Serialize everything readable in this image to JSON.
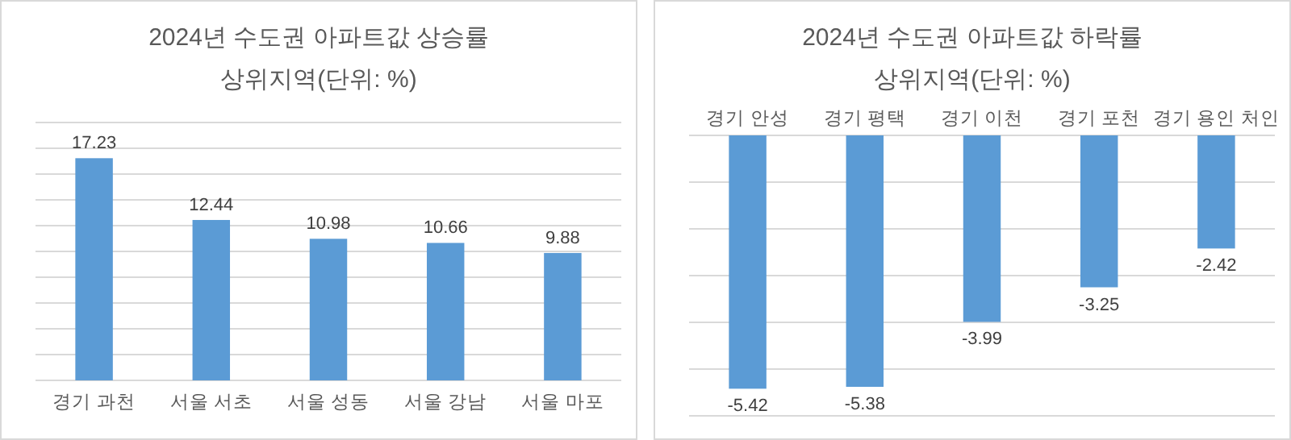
{
  "chart_data": [
    {
      "type": "bar",
      "title": "2024년 수도권 아파트값 상승률",
      "subtitle": "상위지역(단위: %)",
      "categories": [
        "경기 과천",
        "서울 서초",
        "서울 성동",
        "서울 강남",
        "서울 마포"
      ],
      "values": [
        17.23,
        12.44,
        10.98,
        10.66,
        9.88
      ],
      "color": "#5b9bd5",
      "ylim": [
        0,
        20
      ],
      "yticks": [
        {
          "value": 0,
          "label": null
        },
        {
          "value": 2,
          "label": null
        },
        {
          "value": 4,
          "label": null
        },
        {
          "value": 6,
          "label": null
        },
        {
          "value": 8,
          "label": null
        },
        {
          "value": 10,
          "label": null
        },
        {
          "value": 12,
          "label": null
        },
        {
          "value": 14,
          "label": null
        },
        {
          "value": 16,
          "label": null
        },
        {
          "value": 18,
          "label": null
        },
        {
          "value": 20,
          "label": null
        }
      ],
      "tick_labels": "x",
      "grid": "y",
      "data_labels": true
    },
    {
      "type": "bar",
      "title": "2024년 수도권 아파트값 하락률",
      "subtitle": "상위지역(단위: %)",
      "categories": [
        "경기 안성",
        "경기 평택",
        "경기 이천",
        "경기 포천",
        "경기 용인 처인"
      ],
      "values": [
        -5.42,
        -5.38,
        -3.99,
        -3.25,
        -2.42
      ],
      "color": "#5b9bd5",
      "ylim": [
        -6,
        0
      ],
      "yticks": [
        {
          "value": -6,
          "label": null
        },
        {
          "value": -5,
          "label": null
        },
        {
          "value": -4,
          "label": null
        },
        {
          "value": -3,
          "label": null
        },
        {
          "value": -2,
          "label": null
        },
        {
          "value": -1,
          "label": null
        },
        {
          "value": 0,
          "label": null
        }
      ],
      "tick_labels": "x",
      "grid": "y",
      "data_labels": true
    }
  ]
}
